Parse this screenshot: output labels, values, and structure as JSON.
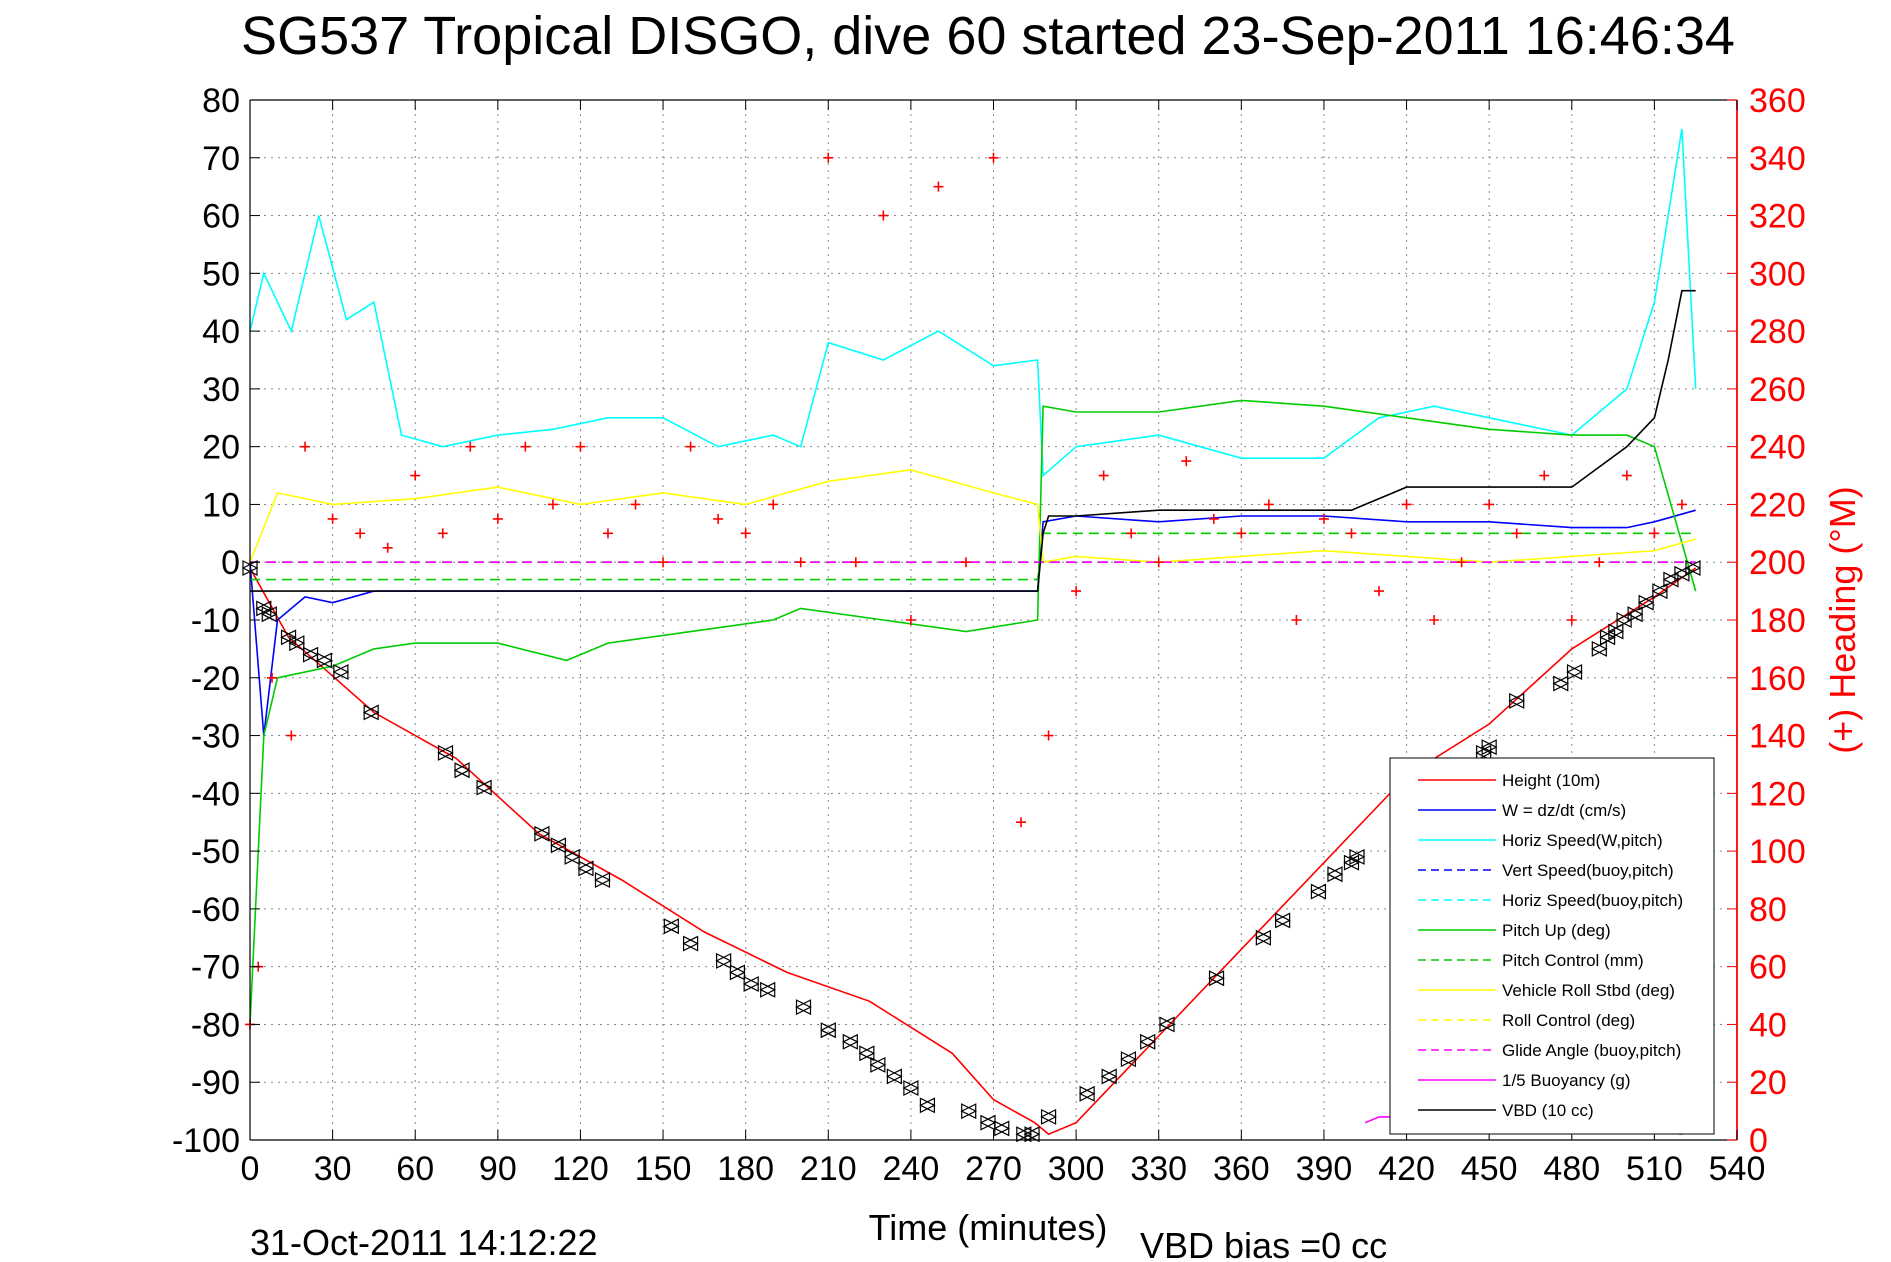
{
  "chart_data": {
    "type": "line",
    "title": "SG537 Tropical DISGO, dive 60 started 23-Sep-2011 16:46:34",
    "xlabel": "Time (minutes)",
    "ylabel_right": "(+) Heading (°M)",
    "xlim": [
      0,
      540
    ],
    "ylim": [
      -100,
      80
    ],
    "ylim_right": [
      0,
      360
    ],
    "x_ticks": [
      0,
      30,
      60,
      90,
      120,
      150,
      180,
      210,
      240,
      270,
      300,
      330,
      360,
      390,
      420,
      450,
      480,
      510,
      540
    ],
    "y_ticks": [
      80,
      70,
      60,
      50,
      40,
      30,
      20,
      10,
      0,
      -10,
      -20,
      -30,
      -40,
      -50,
      -60,
      -70,
      -80,
      -90,
      -100
    ],
    "y_ticks_right": [
      360,
      340,
      320,
      300,
      280,
      260,
      240,
      220,
      200,
      180,
      160,
      140,
      120,
      100,
      80,
      60,
      40,
      20,
      0
    ],
    "grid": true,
    "legend_position": "bottom-right",
    "footer_left": "31-Oct-2011 14:12:22",
    "footer_right": "VBD bias =0 cc",
    "colors": {
      "axis_right": "#ff0000",
      "height": "#ff0000",
      "w": "#0000ff",
      "horiz_speed": "#00ffff",
      "pitch": "#00cc00",
      "roll": "#ffff00",
      "glide": "#ff00ff",
      "vbd": "#000000"
    },
    "series": [
      {
        "name": "Height (10m)",
        "color": "#ff0000",
        "dash": "solid",
        "x": [
          0,
          14,
          45,
          75,
          105,
          135,
          165,
          195,
          225,
          255,
          270,
          285,
          290,
          300,
          330,
          360,
          390,
          420,
          450,
          480,
          510,
          525
        ],
        "y": [
          -1,
          -13,
          -26,
          -34,
          -47,
          -55,
          -64,
          -71,
          -76,
          -85,
          -93,
          -97,
          -99,
          -97,
          -82,
          -67,
          -52,
          -37,
          -28,
          -15,
          -6,
          -1
        ]
      },
      {
        "name": "W = dz/dt (cm/s)",
        "color": "#0000ff",
        "dash": "solid",
        "x": [
          0,
          5,
          10,
          20,
          30,
          45,
          60,
          90,
          120,
          150,
          180,
          210,
          240,
          270,
          286,
          288,
          300,
          330,
          360,
          390,
          420,
          450,
          480,
          500,
          510,
          525
        ],
        "y": [
          0,
          -30,
          -10,
          -6,
          -7,
          -5,
          -5,
          -5,
          -5,
          -5,
          -5,
          -5,
          -5,
          -5,
          -5,
          7,
          8,
          7,
          8,
          8,
          7,
          7,
          6,
          6,
          7,
          9
        ]
      },
      {
        "name": "Horiz Speed(W,pitch)",
        "color": "#00ffff",
        "dash": "solid",
        "x": [
          0,
          5,
          15,
          25,
          35,
          45,
          55,
          70,
          90,
          110,
          130,
          150,
          170,
          190,
          200,
          210,
          230,
          250,
          270,
          286,
          288,
          300,
          330,
          360,
          390,
          410,
          430,
          450,
          480,
          500,
          510,
          520,
          525
        ],
        "y": [
          40,
          50,
          40,
          60,
          42,
          45,
          22,
          20,
          22,
          23,
          25,
          25,
          20,
          22,
          20,
          38,
          35,
          40,
          34,
          35,
          15,
          20,
          22,
          18,
          18,
          25,
          27,
          25,
          22,
          30,
          45,
          75,
          30
        ]
      },
      {
        "name": "Vert Speed(buoy,pitch)",
        "color": "#0000ff",
        "dash": "dash",
        "x": [
          0,
          290,
          525
        ],
        "y": [
          0,
          0,
          0
        ]
      },
      {
        "name": "Horiz Speed(buoy,pitch)",
        "color": "#00ffff",
        "dash": "dash",
        "x": [
          0,
          290,
          525
        ],
        "y": [
          0,
          0,
          0
        ]
      },
      {
        "name": "Pitch Up (deg)",
        "color": "#00cc00",
        "dash": "solid",
        "x": [
          0,
          5,
          10,
          30,
          45,
          60,
          90,
          115,
          130,
          160,
          190,
          200,
          230,
          260,
          286,
          288,
          300,
          330,
          360,
          390,
          420,
          450,
          480,
          500,
          510,
          525
        ],
        "y": [
          -80,
          -30,
          -20,
          -18,
          -15,
          -14,
          -14,
          -17,
          -14,
          -12,
          -10,
          -8,
          -10,
          -12,
          -10,
          27,
          26,
          26,
          28,
          27,
          25,
          23,
          22,
          22,
          20,
          -5
        ]
      },
      {
        "name": "Pitch Control (mm)",
        "color": "#00cc00",
        "dash": "dash",
        "x": [
          0,
          286,
          288,
          525
        ],
        "y": [
          -3,
          -3,
          5,
          5
        ]
      },
      {
        "name": "Vehicle Roll Stbd (deg)",
        "color": "#ffff00",
        "dash": "solid",
        "x": [
          0,
          10,
          30,
          60,
          90,
          120,
          150,
          180,
          210,
          240,
          270,
          286,
          288,
          300,
          330,
          360,
          390,
          420,
          450,
          480,
          510,
          525
        ],
        "y": [
          0,
          12,
          10,
          11,
          13,
          10,
          12,
          10,
          14,
          16,
          12,
          10,
          0,
          1,
          0,
          1,
          2,
          1,
          0,
          1,
          2,
          4
        ]
      },
      {
        "name": "Roll Control (deg)",
        "color": "#ffff00",
        "dash": "dash",
        "x": [
          0,
          525
        ],
        "y": [
          0,
          0
        ]
      },
      {
        "name": "Glide Angle (buoy,pitch)",
        "color": "#ff00ff",
        "dash": "dash",
        "x": [
          0,
          525
        ],
        "y": [
          0,
          0
        ]
      },
      {
        "name": "1/5 Buoyancy (g)",
        "color": "#ff00ff",
        "dash": "solid",
        "x": [
          405,
          410,
          420,
          450,
          480,
          500,
          520
        ],
        "y": [
          -97,
          -96,
          -96,
          -97,
          -98,
          -98,
          -99
        ]
      },
      {
        "name": "VBD (10 cc)",
        "color": "#000000",
        "dash": "solid",
        "x": [
          0,
          286,
          288,
          290,
          300,
          330,
          350,
          400,
          405,
          420,
          480,
          500,
          510,
          515,
          520,
          525
        ],
        "y": [
          -5,
          -5,
          5,
          8,
          8,
          9,
          9,
          9,
          10,
          13,
          13,
          20,
          25,
          35,
          47,
          47
        ]
      }
    ],
    "heading_series": {
      "name": "(+) Heading (°M)",
      "color": "#ff0000",
      "marker": "+",
      "x": [
        0,
        3,
        8,
        15,
        20,
        30,
        40,
        50,
        60,
        70,
        80,
        90,
        100,
        110,
        120,
        130,
        140,
        150,
        160,
        170,
        180,
        190,
        200,
        210,
        220,
        230,
        240,
        250,
        260,
        270,
        280,
        290,
        300,
        310,
        320,
        330,
        340,
        350,
        360,
        370,
        380,
        390,
        400,
        410,
        420,
        430,
        440,
        450,
        460,
        470,
        480,
        490,
        500,
        510,
        520
      ],
      "y": [
        40,
        60,
        160,
        140,
        240,
        215,
        210,
        205,
        230,
        210,
        240,
        215,
        240,
        220,
        240,
        210,
        220,
        200,
        240,
        215,
        210,
        220,
        200,
        340,
        200,
        320,
        180,
        330,
        200,
        340,
        110,
        140,
        190,
        230,
        210,
        200,
        235,
        215,
        210,
        220,
        180,
        215,
        210,
        190,
        220,
        180,
        200,
        220,
        210,
        230,
        180,
        200,
        230,
        210,
        220
      ]
    },
    "position_markers": {
      "marker": "triangles",
      "x": [
        0,
        5,
        7,
        14,
        17,
        22,
        27,
        33,
        44,
        71,
        77,
        85,
        106,
        112,
        117,
        122,
        128,
        153,
        160,
        172,
        177,
        182,
        188,
        201,
        210,
        218,
        224,
        228,
        234,
        240,
        246,
        261,
        268,
        273,
        281,
        284,
        290,
        304,
        312,
        319,
        326,
        333,
        351,
        368,
        375,
        388,
        394,
        400,
        402,
        448,
        450,
        460,
        476,
        481,
        490,
        493,
        496,
        499,
        503,
        507,
        512,
        516,
        520,
        524
      ],
      "y": [
        -1,
        -8,
        -9,
        -13,
        -14,
        -16,
        -17,
        -19,
        -26,
        -33,
        -36,
        -39,
        -47,
        -49,
        -51,
        -53,
        -55,
        -63,
        -66,
        -69,
        -71,
        -73,
        -74,
        -77,
        -81,
        -83,
        -85,
        -87,
        -89,
        -91,
        -94,
        -95,
        -97,
        -98,
        -99,
        -99,
        -96,
        -92,
        -89,
        -86,
        -83,
        -80,
        -72,
        -65,
        -62,
        -57,
        -54,
        -52,
        -51,
        -33,
        -32,
        -24,
        -21,
        -19,
        -15,
        -13,
        -12,
        -10,
        -9,
        -7,
        -5,
        -3,
        -2,
        -1
      ]
    }
  }
}
